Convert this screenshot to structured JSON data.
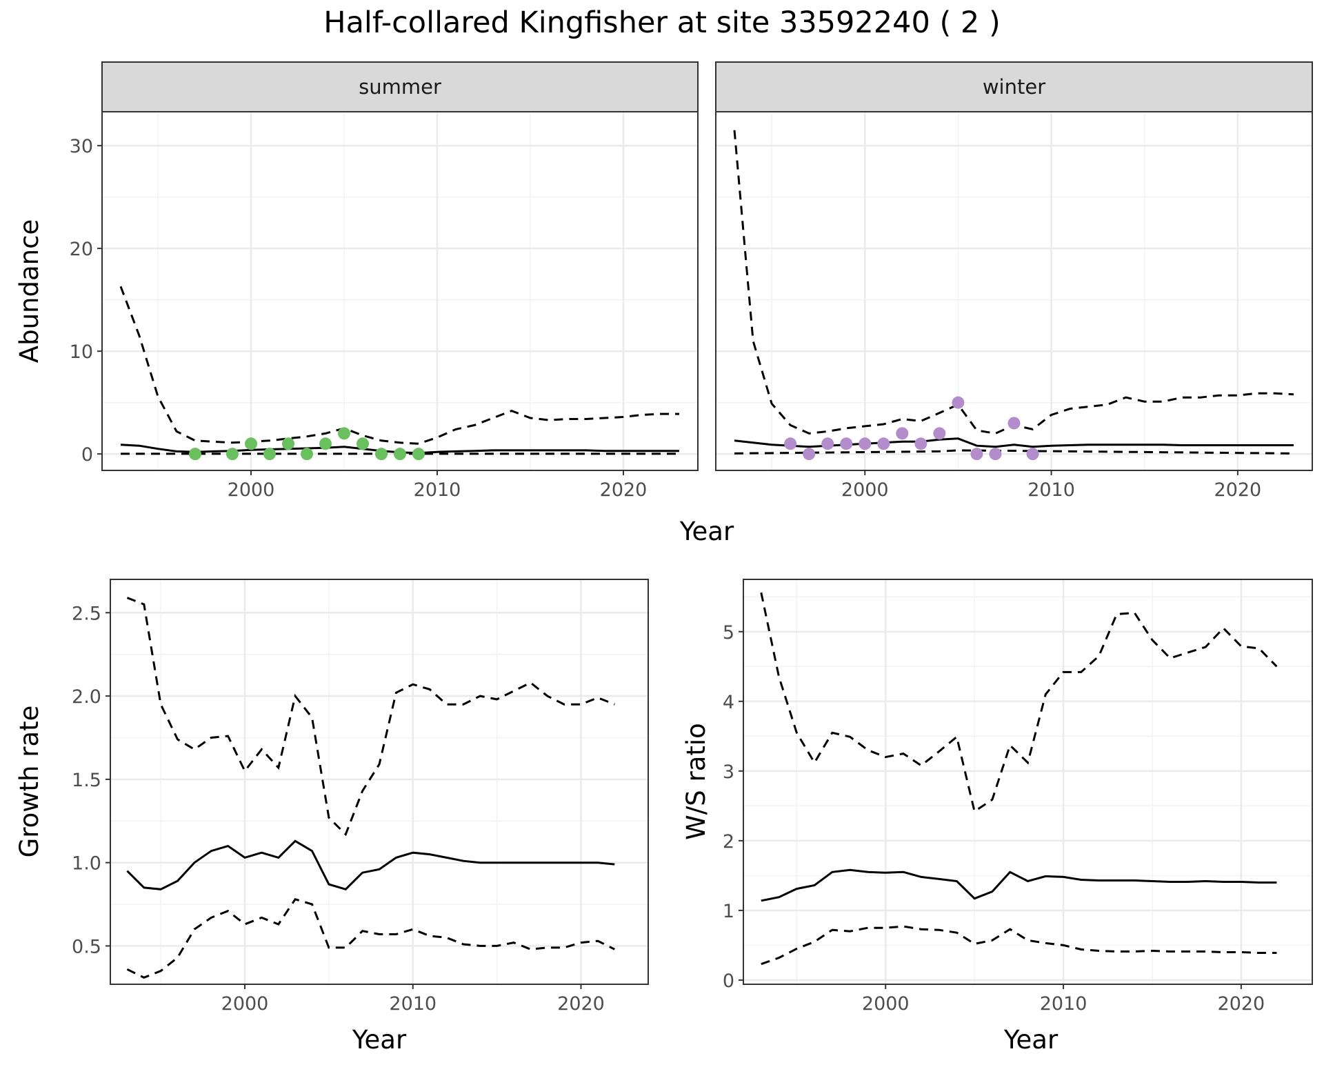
{
  "title": "Half-collared Kingfisher at site 33592240 ( 2 )",
  "colors": {
    "summer_points": "#6abf5e",
    "winter_points": "#b38ccb",
    "lines": "#000000"
  },
  "chart_data": [
    {
      "type": "line",
      "facet": "summer",
      "xlabel": "Year",
      "ylabel": "Abundance",
      "xlim": [
        1992,
        2024
      ],
      "ylim": [
        -1.6,
        33.3
      ],
      "xticks": [
        2000,
        2010,
        2020
      ],
      "yticks": [
        0,
        10,
        20,
        30
      ],
      "grid": true,
      "series": [
        {
          "style": "solid",
          "x": [
            1993,
            1994,
            1995,
            1996,
            1997,
            1998,
            1999,
            2000,
            2001,
            2002,
            2003,
            2004,
            2005,
            2006,
            2007,
            2008,
            2009,
            2010,
            2011,
            2012,
            2013,
            2014,
            2015,
            2016,
            2017,
            2018,
            2019,
            2020,
            2021,
            2022,
            2023
          ],
          "y": [
            0.9,
            0.8,
            0.5,
            0.25,
            0.2,
            0.25,
            0.3,
            0.4,
            0.45,
            0.5,
            0.55,
            0.6,
            0.7,
            0.5,
            0.3,
            0.15,
            0.1,
            0.2,
            0.25,
            0.3,
            0.35,
            0.35,
            0.35,
            0.35,
            0.35,
            0.35,
            0.3,
            0.3,
            0.3,
            0.3,
            0.3
          ]
        },
        {
          "style": "dashed",
          "x": [
            1993,
            1994,
            1995,
            1996,
            1997,
            1998,
            1999,
            2000,
            2001,
            2002,
            2003,
            2004,
            2005,
            2006,
            2007,
            2008,
            2009,
            2010,
            2011,
            2012,
            2013,
            2014,
            2015,
            2016,
            2017,
            2018,
            2019,
            2020,
            2021,
            2022,
            2023
          ],
          "y": [
            16.3,
            11.5,
            5.6,
            2.2,
            1.3,
            1.2,
            1.1,
            1.2,
            1.3,
            1.5,
            1.7,
            2.0,
            2.5,
            1.8,
            1.3,
            1.1,
            1.0,
            1.6,
            2.4,
            2.8,
            3.5,
            4.2,
            3.5,
            3.3,
            3.4,
            3.4,
            3.5,
            3.6,
            3.8,
            3.9,
            3.9
          ]
        },
        {
          "style": "dashed",
          "x": [
            1993,
            2023
          ],
          "y": [
            0.02,
            0.02
          ]
        }
      ],
      "points": {
        "x": [
          1997,
          1999,
          2000,
          2001,
          2002,
          2003,
          2004,
          2005,
          2006,
          2007,
          2008,
          2009
        ],
        "y": [
          0,
          0,
          1,
          0,
          1,
          0,
          1,
          2,
          1,
          0,
          0,
          0
        ]
      }
    },
    {
      "type": "line",
      "facet": "winter",
      "xlabel": "Year",
      "ylabel": "",
      "xlim": [
        1992,
        2024
      ],
      "ylim": [
        -1.6,
        33.3
      ],
      "xticks": [
        2000,
        2010,
        2020
      ],
      "yticks": [
        0,
        10,
        20,
        30
      ],
      "grid": true,
      "series": [
        {
          "style": "solid",
          "x": [
            1993,
            1994,
            1995,
            1996,
            1997,
            1998,
            1999,
            2000,
            2001,
            2002,
            2003,
            2004,
            2005,
            2006,
            2007,
            2008,
            2009,
            2010,
            2011,
            2012,
            2013,
            2014,
            2015,
            2016,
            2017,
            2018,
            2019,
            2020,
            2021,
            2022,
            2023
          ],
          "y": [
            1.3,
            1.1,
            0.9,
            0.8,
            0.7,
            0.8,
            0.9,
            1.0,
            1.1,
            1.2,
            1.2,
            1.4,
            1.5,
            0.8,
            0.7,
            0.9,
            0.7,
            0.8,
            0.85,
            0.9,
            0.9,
            0.9,
            0.9,
            0.9,
            0.85,
            0.85,
            0.85,
            0.85,
            0.85,
            0.85,
            0.85
          ]
        },
        {
          "style": "dashed",
          "x": [
            1993,
            1994,
            1995,
            1996,
            1997,
            1998,
            1999,
            2000,
            2001,
            2002,
            2003,
            2004,
            2005,
            2006,
            2007,
            2008,
            2009,
            2010,
            2011,
            2012,
            2013,
            2014,
            2015,
            2016,
            2017,
            2018,
            2019,
            2020,
            2021,
            2022,
            2023
          ],
          "y": [
            31.5,
            11.0,
            4.9,
            2.8,
            2.0,
            2.2,
            2.5,
            2.7,
            2.9,
            3.4,
            3.2,
            4.0,
            4.8,
            2.3,
            2.0,
            2.8,
            2.4,
            3.8,
            4.4,
            4.6,
            4.8,
            5.5,
            5.1,
            5.1,
            5.5,
            5.5,
            5.7,
            5.7,
            5.9,
            5.9,
            5.8
          ]
        },
        {
          "style": "dashed",
          "x": [
            1993,
            2004,
            2005,
            2023
          ],
          "y": [
            0.05,
            0.25,
            0.35,
            0.05
          ]
        }
      ],
      "points": {
        "x": [
          1996,
          1997,
          1998,
          1999,
          2000,
          2001,
          2002,
          2003,
          2004,
          2005,
          2006,
          2007,
          2008,
          2009
        ],
        "y": [
          1,
          0,
          1,
          1,
          1,
          1,
          2,
          1,
          2,
          5,
          0,
          0,
          3,
          0
        ]
      }
    },
    {
      "type": "line",
      "xlabel": "Year",
      "ylabel": "Growth rate",
      "xlim": [
        1992,
        2024
      ],
      "ylim": [
        0.27,
        2.7
      ],
      "xticks": [
        2000,
        2010,
        2020
      ],
      "yticks": [
        0.5,
        1.0,
        1.5,
        2.0,
        2.5
      ],
      "grid": true,
      "series": [
        {
          "style": "solid",
          "x": [
            1993,
            1994,
            1995,
            1996,
            1997,
            1998,
            1999,
            2000,
            2001,
            2002,
            2003,
            2004,
            2005,
            2006,
            2007,
            2008,
            2009,
            2010,
            2011,
            2012,
            2013,
            2014,
            2015,
            2016,
            2017,
            2018,
            2019,
            2020,
            2021,
            2022
          ],
          "y": [
            0.95,
            0.85,
            0.84,
            0.89,
            1.0,
            1.07,
            1.1,
            1.03,
            1.06,
            1.03,
            1.13,
            1.07,
            0.87,
            0.84,
            0.94,
            0.96,
            1.03,
            1.06,
            1.05,
            1.03,
            1.01,
            1.0,
            1.0,
            1.0,
            1.0,
            1.0,
            1.0,
            1.0,
            1.0,
            0.99
          ]
        },
        {
          "style": "dashed",
          "x": [
            1993,
            1994,
            1995,
            1996,
            1997,
            1998,
            1999,
            2000,
            2001,
            2002,
            2003,
            2004,
            2005,
            2006,
            2007,
            2008,
            2009,
            2010,
            2011,
            2012,
            2013,
            2014,
            2015,
            2016,
            2017,
            2018,
            2019,
            2020,
            2021,
            2022
          ],
          "y": [
            2.59,
            2.55,
            1.95,
            1.74,
            1.68,
            1.75,
            1.76,
            1.55,
            1.68,
            1.57,
            2.0,
            1.87,
            1.27,
            1.17,
            1.43,
            1.59,
            2.02,
            2.07,
            2.04,
            1.95,
            1.95,
            2.0,
            1.98,
            2.03,
            2.08,
            2.0,
            1.95,
            1.95,
            1.99,
            1.95
          ]
        },
        {
          "style": "dashed",
          "x": [
            1993,
            1994,
            1995,
            1996,
            1997,
            1998,
            1999,
            2000,
            2001,
            2002,
            2003,
            2004,
            2005,
            2006,
            2007,
            2008,
            2009,
            2010,
            2011,
            2012,
            2013,
            2014,
            2015,
            2016,
            2017,
            2018,
            2019,
            2020,
            2021,
            2022
          ],
          "y": [
            0.36,
            0.31,
            0.35,
            0.43,
            0.6,
            0.67,
            0.71,
            0.63,
            0.67,
            0.63,
            0.78,
            0.75,
            0.49,
            0.49,
            0.59,
            0.57,
            0.57,
            0.6,
            0.56,
            0.55,
            0.51,
            0.5,
            0.5,
            0.52,
            0.48,
            0.49,
            0.49,
            0.52,
            0.53,
            0.48
          ]
        }
      ]
    },
    {
      "type": "line",
      "xlabel": "Year",
      "ylabel": "W/S ratio",
      "xlim": [
        1992,
        2024
      ],
      "ylim": [
        -0.06,
        5.75
      ],
      "xticks": [
        2000,
        2010,
        2020
      ],
      "yticks": [
        0,
        1,
        2,
        3,
        4,
        5
      ],
      "grid": true,
      "series": [
        {
          "style": "solid",
          "x": [
            1993,
            1994,
            1995,
            1996,
            1997,
            1998,
            1999,
            2000,
            2001,
            2002,
            2003,
            2004,
            2005,
            2006,
            2007,
            2008,
            2009,
            2010,
            2011,
            2012,
            2013,
            2014,
            2015,
            2016,
            2017,
            2018,
            2019,
            2020,
            2021,
            2022
          ],
          "y": [
            1.14,
            1.19,
            1.31,
            1.36,
            1.55,
            1.58,
            1.55,
            1.54,
            1.55,
            1.48,
            1.45,
            1.42,
            1.17,
            1.27,
            1.55,
            1.42,
            1.49,
            1.48,
            1.44,
            1.43,
            1.43,
            1.43,
            1.42,
            1.41,
            1.41,
            1.42,
            1.41,
            1.41,
            1.4,
            1.4
          ]
        },
        {
          "style": "dashed",
          "x": [
            1993,
            1994,
            1995,
            1996,
            1997,
            1998,
            1999,
            2000,
            2001,
            2002,
            2003,
            2004,
            2005,
            2006,
            2007,
            2008,
            2009,
            2010,
            2011,
            2012,
            2013,
            2014,
            2015,
            2016,
            2017,
            2018,
            2019,
            2020,
            2021,
            2022
          ],
          "y": [
            5.56,
            4.35,
            3.55,
            3.12,
            3.55,
            3.49,
            3.3,
            3.2,
            3.25,
            3.08,
            3.28,
            3.49,
            2.42,
            2.59,
            3.37,
            3.12,
            4.1,
            4.42,
            4.42,
            4.65,
            5.25,
            5.27,
            4.88,
            4.62,
            4.7,
            4.78,
            5.05,
            4.79,
            4.76,
            4.5
          ]
        },
        {
          "style": "dashed",
          "x": [
            1993,
            1994,
            1995,
            1996,
            1997,
            1998,
            1999,
            2000,
            2001,
            2002,
            2003,
            2004,
            2005,
            2006,
            2007,
            2008,
            2009,
            2010,
            2011,
            2012,
            2013,
            2014,
            2015,
            2016,
            2017,
            2018,
            2019,
            2020,
            2021,
            2022
          ],
          "y": [
            0.23,
            0.32,
            0.45,
            0.55,
            0.72,
            0.7,
            0.75,
            0.75,
            0.77,
            0.73,
            0.72,
            0.68,
            0.52,
            0.57,
            0.73,
            0.57,
            0.53,
            0.5,
            0.44,
            0.42,
            0.41,
            0.41,
            0.42,
            0.41,
            0.41,
            0.41,
            0.4,
            0.4,
            0.39,
            0.39
          ]
        }
      ]
    }
  ]
}
